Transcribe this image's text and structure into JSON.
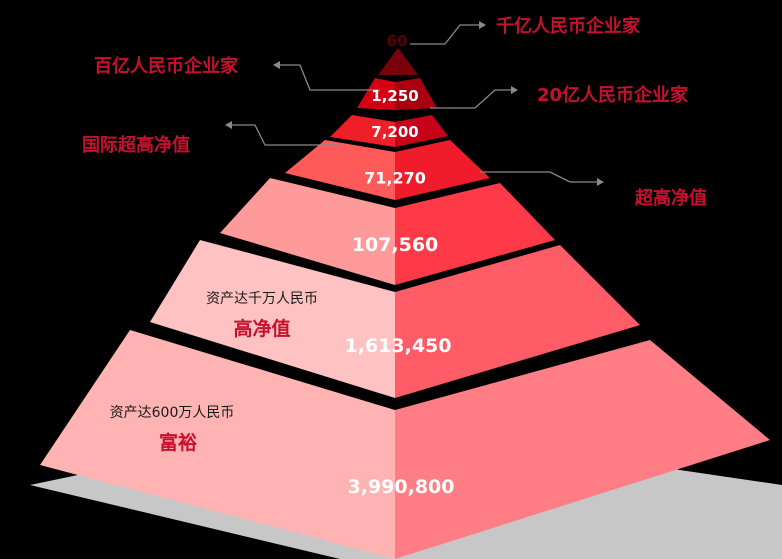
{
  "colors": {
    "background": "#000000",
    "accent": "#c8102e"
  },
  "tiers": [
    {
      "count": "60"
    },
    {
      "count": "1,250"
    },
    {
      "count": "7,200"
    },
    {
      "count": "71,270"
    },
    {
      "count": "107,560"
    },
    {
      "count": "1,613,450",
      "description": "资产达千万人民币",
      "category": "高净值"
    },
    {
      "count": "3,990,800",
      "description": "资产达600万人民币",
      "category": "富裕"
    }
  ],
  "callouts": {
    "top": "千亿人民币企业家",
    "hundred_billion": "百亿人民币企业家",
    "twenty_billion": "20亿人民币企业家",
    "intl_uhnw": "国际超高净值",
    "uhnw": "超高净值"
  }
}
